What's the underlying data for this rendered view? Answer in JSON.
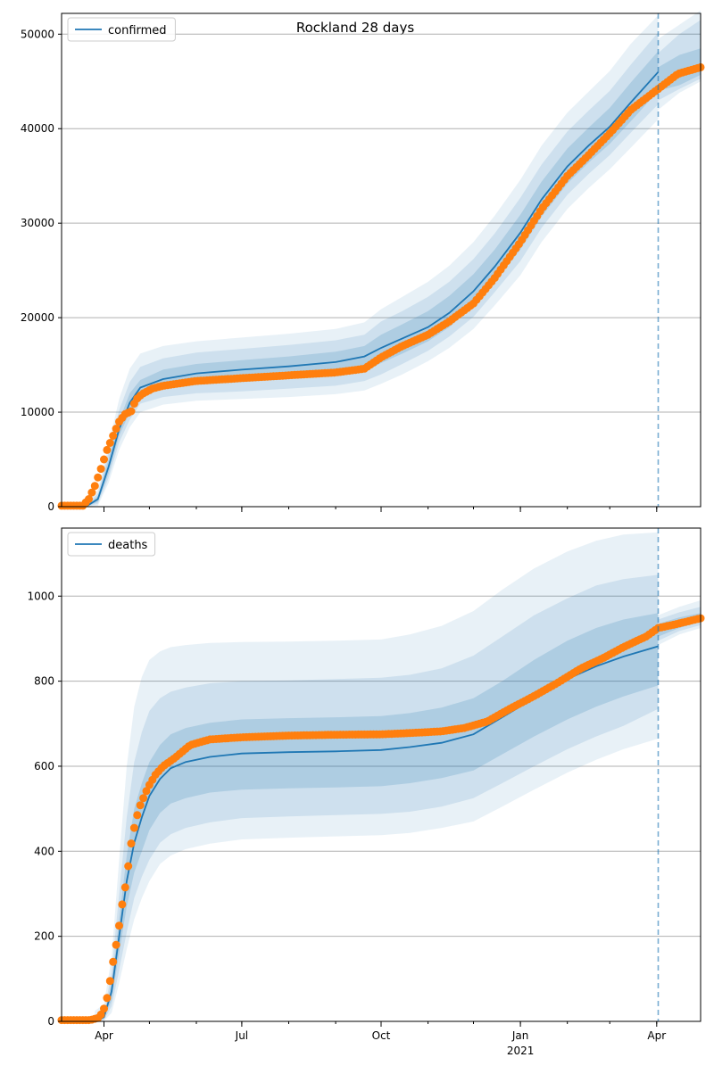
{
  "figure_title": "Rockland 28 days",
  "colors": {
    "model": "#1f77b4",
    "observed": "#ff7f0e",
    "band": "#1f77b4",
    "grid": "#b0b0b0"
  },
  "x_axis": {
    "tick_labels": [
      "Apr",
      "Jul",
      "Oct",
      "Jan",
      "Apr"
    ],
    "tick_dates": [
      "2020-04-01",
      "2020-07-01",
      "2020-10-01",
      "2021-01-01",
      "2021-04-01"
    ],
    "year_label": "2021",
    "range": [
      "2020-03-04",
      "2021-04-30"
    ],
    "forecast_start": "2021-04-02"
  },
  "chart_data": [
    {
      "type": "line",
      "legend": "confirmed",
      "legend_position": "top-left",
      "grid": true,
      "ylim": [
        0,
        52200
      ],
      "y_ticks": [
        0,
        10000,
        20000,
        30000,
        40000,
        50000
      ],
      "y_tick_labels": [
        "0",
        "10000",
        "20000",
        "30000",
        "40000",
        "50000"
      ],
      "model": {
        "x": [
          "2020-03-20",
          "2020-03-28",
          "2020-04-04",
          "2020-04-11",
          "2020-04-18",
          "2020-04-25",
          "2020-05-10",
          "2020-06-01",
          "2020-07-01",
          "2020-08-01",
          "2020-09-01",
          "2020-09-20",
          "2020-10-01",
          "2020-10-15",
          "2020-11-01",
          "2020-11-15",
          "2020-12-01",
          "2020-12-15",
          "2021-01-01",
          "2021-01-15",
          "2021-02-01",
          "2021-02-15",
          "2021-03-01",
          "2021-03-15",
          "2021-04-02"
        ],
        "y": [
          0,
          800,
          4200,
          8200,
          11000,
          12600,
          13500,
          14100,
          14500,
          14850,
          15300,
          15900,
          16800,
          17800,
          19000,
          20500,
          22800,
          25400,
          29000,
          32500,
          36000,
          38200,
          40200,
          42800,
          46000
        ]
      },
      "bands": [
        {
          "lower": [
            0,
            500,
            3500,
            7500,
            10000,
            11800,
            12500,
            12900,
            13200,
            13500,
            13800,
            14300,
            15200,
            16200,
            17500,
            19000,
            21200,
            23800,
            27200,
            30700,
            34200,
            36400,
            38400,
            40800,
            44000
          ],
          "upper": [
            0,
            1100,
            5000,
            9100,
            12000,
            13400,
            14500,
            15100,
            15500,
            15900,
            16400,
            17000,
            18200,
            19300,
            20700,
            22300,
            24600,
            27200,
            30900,
            34400,
            37900,
            40100,
            42200,
            44900,
            48200
          ]
        },
        {
          "lower": [
            0,
            300,
            3000,
            6800,
            9200,
            10900,
            11600,
            12000,
            12200,
            12500,
            12800,
            13300,
            14000,
            15100,
            16500,
            18000,
            20100,
            22700,
            26000,
            29500,
            33000,
            35200,
            37200,
            39600,
            42600
          ],
          "upper": [
            200,
            1400,
            5800,
            10200,
            13200,
            14800,
            15700,
            16300,
            16700,
            17100,
            17600,
            18200,
            19600,
            20700,
            22200,
            23800,
            26200,
            28900,
            32700,
            36200,
            39700,
            41900,
            44000,
            46800,
            50200
          ]
        },
        {
          "lower": [
            0,
            100,
            2500,
            6000,
            8400,
            10000,
            10800,
            11200,
            11400,
            11600,
            11900,
            12300,
            13000,
            14000,
            15400,
            16800,
            18800,
            21300,
            24500,
            28000,
            31500,
            33700,
            35700,
            38000,
            41000
          ],
          "upper": [
            300,
            1800,
            6500,
            11400,
            14600,
            16200,
            17000,
            17500,
            17900,
            18300,
            18800,
            19500,
            20900,
            22200,
            23800,
            25500,
            28000,
            30800,
            34600,
            38200,
            41700,
            43900,
            46100,
            49000,
            52000
          ]
        }
      ],
      "post_bands": [
        {
          "x": [
            "2021-04-02",
            "2021-04-16",
            "2021-04-30"
          ],
          "lower": [
            44000,
            44600,
            45700
          ],
          "upper": [
            46500,
            47800,
            48500
          ]
        },
        {
          "x": [
            "2021-04-02",
            "2021-04-16",
            "2021-04-30"
          ],
          "lower": [
            43000,
            44200,
            45300
          ],
          "upper": [
            48000,
            50000,
            51500
          ]
        },
        {
          "x": [
            "2021-04-02",
            "2021-04-16",
            "2021-04-30"
          ],
          "lower": [
            42000,
            43800,
            45000
          ],
          "upper": [
            49500,
            51000,
            52500
          ]
        }
      ],
      "observed": {
        "x": [
          "2020-03-04",
          "2020-03-18",
          "2020-03-22",
          "2020-03-26",
          "2020-03-30",
          "2020-04-03",
          "2020-04-07",
          "2020-04-11",
          "2020-04-15",
          "2020-04-19",
          "2020-04-22",
          "2020-04-26",
          "2020-05-03",
          "2020-05-10",
          "2020-06-01",
          "2020-07-01",
          "2020-08-01",
          "2020-09-01",
          "2020-09-20",
          "2020-10-01",
          "2020-10-15",
          "2020-11-01",
          "2020-11-15",
          "2020-12-01",
          "2020-12-15",
          "2021-01-01",
          "2021-01-15",
          "2021-02-01",
          "2021-02-15",
          "2021-03-01",
          "2021-03-15",
          "2021-04-02",
          "2021-04-15",
          "2021-04-30"
        ],
        "y": [
          100,
          100,
          800,
          2200,
          4000,
          6000,
          7500,
          9000,
          9800,
          10100,
          11300,
          11900,
          12500,
          12800,
          13300,
          13600,
          13900,
          14200,
          14600,
          15800,
          17000,
          18200,
          19600,
          21500,
          24200,
          28000,
          31500,
          35000,
          37200,
          39500,
          42000,
          44200,
          45800,
          46500
        ]
      }
    },
    {
      "type": "line",
      "legend": "deaths",
      "legend_position": "top-left",
      "grid": true,
      "ylim": [
        0,
        1160
      ],
      "y_ticks": [
        0,
        200,
        400,
        600,
        800,
        1000
      ],
      "y_tick_labels": [
        "0",
        "200",
        "400",
        "600",
        "800",
        "1000"
      ],
      "model": {
        "x": [
          "2020-03-26",
          "2020-04-01",
          "2020-04-06",
          "2020-04-11",
          "2020-04-16",
          "2020-04-21",
          "2020-04-26",
          "2020-05-01",
          "2020-05-08",
          "2020-05-15",
          "2020-05-25",
          "2020-06-10",
          "2020-07-01",
          "2020-08-01",
          "2020-09-01",
          "2020-10-01",
          "2020-10-20",
          "2020-11-10",
          "2020-12-01",
          "2020-12-20",
          "2021-01-10",
          "2021-02-01",
          "2021-02-20",
          "2021-03-10",
          "2021-04-02"
        ],
        "y": [
          0,
          10,
          70,
          200,
          330,
          420,
          480,
          530,
          570,
          595,
          610,
          622,
          630,
          633,
          635,
          638,
          645,
          655,
          675,
          715,
          760,
          805,
          835,
          858,
          882
        ]
      },
      "bands": [
        {
          "lower": [
            0,
            6,
            50,
            160,
            270,
            350,
            400,
            450,
            490,
            512,
            525,
            538,
            545,
            548,
            550,
            553,
            560,
            572,
            590,
            628,
            670,
            710,
            740,
            764,
            790
          ],
          "upper": [
            3,
            14,
            90,
            240,
            390,
            500,
            560,
            610,
            650,
            675,
            690,
            702,
            710,
            713,
            715,
            718,
            725,
            738,
            760,
            800,
            850,
            895,
            925,
            945,
            960
          ]
        },
        {
          "lower": [
            0,
            3,
            35,
            120,
            210,
            290,
            340,
            380,
            420,
            440,
            455,
            468,
            478,
            482,
            485,
            488,
            493,
            505,
            525,
            560,
            600,
            640,
            670,
            695,
            735
          ],
          "upper": [
            6,
            20,
            115,
            300,
            480,
            610,
            680,
            730,
            760,
            775,
            785,
            795,
            800,
            802,
            805,
            808,
            815,
            830,
            860,
            905,
            955,
            995,
            1025,
            1040,
            1050
          ]
        },
        {
          "lower": [
            0,
            1,
            20,
            90,
            170,
            240,
            290,
            330,
            370,
            390,
            405,
            418,
            428,
            432,
            435,
            438,
            443,
            455,
            470,
            505,
            545,
            585,
            615,
            640,
            665
          ],
          "upper": [
            25,
            40,
            150,
            380,
            600,
            740,
            810,
            850,
            870,
            880,
            885,
            890,
            892,
            893,
            895,
            898,
            910,
            930,
            965,
            1015,
            1065,
            1105,
            1130,
            1145,
            1150
          ]
        }
      ],
      "post_bands": [
        {
          "x": [
            "2021-04-02",
            "2021-04-16",
            "2021-04-30"
          ],
          "lower": [
            905,
            925,
            940
          ],
          "upper": [
            935,
            950,
            960
          ]
        },
        {
          "x": [
            "2021-04-02",
            "2021-04-16",
            "2021-04-30"
          ],
          "lower": [
            895,
            918,
            932
          ],
          "upper": [
            945,
            962,
            975
          ]
        },
        {
          "x": [
            "2021-04-02",
            "2021-04-16",
            "2021-04-30"
          ],
          "lower": [
            885,
            910,
            925
          ],
          "upper": [
            955,
            975,
            990
          ]
        }
      ],
      "observed": {
        "x": [
          "2020-03-04",
          "2020-03-23",
          "2020-03-28",
          "2020-03-31",
          "2020-04-02",
          "2020-04-04",
          "2020-04-06",
          "2020-04-08",
          "2020-04-10",
          "2020-04-12",
          "2020-04-14",
          "2020-04-16",
          "2020-04-18",
          "2020-04-21",
          "2020-04-24",
          "2020-04-27",
          "2020-04-30",
          "2020-05-05",
          "2020-05-10",
          "2020-05-18",
          "2020-05-28",
          "2020-06-10",
          "2020-07-01",
          "2020-08-01",
          "2020-09-01",
          "2020-10-01",
          "2020-10-20",
          "2020-11-10",
          "2020-11-25",
          "2020-12-10",
          "2020-12-25",
          "2021-01-10",
          "2021-01-25",
          "2021-02-10",
          "2021-02-25",
          "2021-03-10",
          "2021-03-25",
          "2021-04-02",
          "2021-04-15",
          "2021-04-30"
        ],
        "y": [
          3,
          3,
          8,
          20,
          40,
          70,
          120,
          160,
          200,
          250,
          300,
          330,
          400,
          455,
          500,
          525,
          550,
          580,
          600,
          620,
          650,
          663,
          668,
          672,
          674,
          675,
          678,
          682,
          690,
          705,
          735,
          765,
          795,
          830,
          855,
          880,
          905,
          925,
          935,
          948
        ]
      }
    }
  ]
}
